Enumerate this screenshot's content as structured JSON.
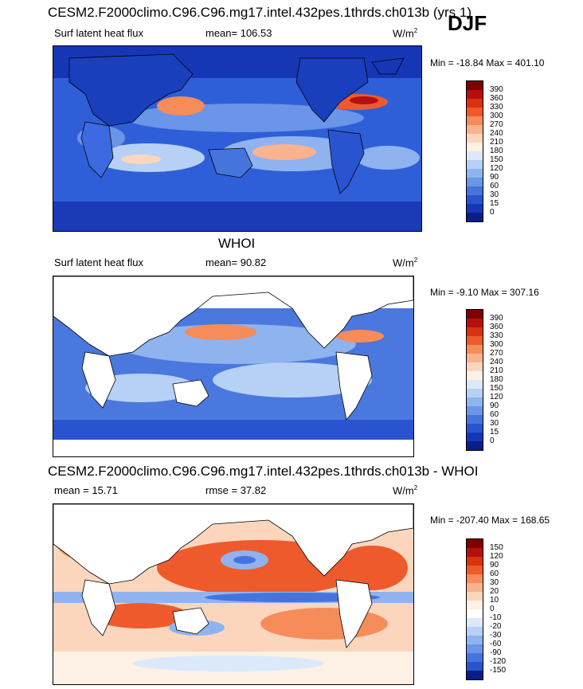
{
  "season": "DJF",
  "panels": [
    {
      "title": "CESM2.F2000climo.C96.C96.mg17.intel.432pes.1thrds.ch013b (yrs 1)",
      "left_label": "Surf latent heat flux",
      "center_label": "mean= 106.53",
      "units_base": "W/m",
      "units_sup": "2",
      "minmax": "Min = -18.84 Max = 401.10",
      "colorbar": {
        "labels": [
          "390",
          "360",
          "330",
          "300",
          "270",
          "240",
          "210",
          "180",
          "150",
          "120",
          "90",
          "60",
          "30",
          "15",
          "0"
        ],
        "colors": [
          "#800000",
          "#b50f0f",
          "#d8320f",
          "#ef5a2c",
          "#f58c5a",
          "#f9b38f",
          "#fbd6bd",
          "#fdf0e4",
          "#dce9fb",
          "#b7d0f5",
          "#8fb3ef",
          "#6a95e8",
          "#4674dd",
          "#2a54cf",
          "#1637b5",
          "#0a1e88"
        ]
      }
    },
    {
      "title": "WHOI",
      "left_label": "Surf latent heat flux",
      "center_label": "mean= 90.82",
      "units_base": "W/m",
      "units_sup": "2",
      "minmax": "Min = -9.10 Max = 307.16",
      "colorbar": {
        "labels": [
          "390",
          "360",
          "330",
          "300",
          "270",
          "240",
          "210",
          "180",
          "150",
          "120",
          "90",
          "60",
          "30",
          "15",
          "0"
        ],
        "colors": [
          "#800000",
          "#b50f0f",
          "#d8320f",
          "#ef5a2c",
          "#f58c5a",
          "#f9b38f",
          "#fbd6bd",
          "#fdf0e4",
          "#dce9fb",
          "#b7d0f5",
          "#8fb3ef",
          "#6a95e8",
          "#4674dd",
          "#2a54cf",
          "#1637b5",
          "#0a1e88"
        ]
      }
    },
    {
      "title": "CESM2.F2000climo.C96.C96.mg17.intel.432pes.1thrds.ch013b - WHOI",
      "left_label": "mean = 15.71",
      "center_label": "rmse = 37.82",
      "units_base": "W/m",
      "units_sup": "2",
      "minmax": "Min = -207.40 Max = 168.65",
      "colorbar": {
        "labels": [
          "150",
          "120",
          "90",
          "60",
          "30",
          "20",
          "10",
          "0",
          "-10",
          "-20",
          "-30",
          "-60",
          "-90",
          "-120",
          "-150"
        ],
        "colors": [
          "#800000",
          "#b50f0f",
          "#d8320f",
          "#ef5a2c",
          "#f58c5a",
          "#f9b38f",
          "#fbd6bd",
          "#fdf0e4",
          "#ffffff",
          "#dce9fb",
          "#b7d0f5",
          "#8fb3ef",
          "#6a95e8",
          "#4674dd",
          "#2a54cf",
          "#0a1e88"
        ]
      }
    }
  ]
}
